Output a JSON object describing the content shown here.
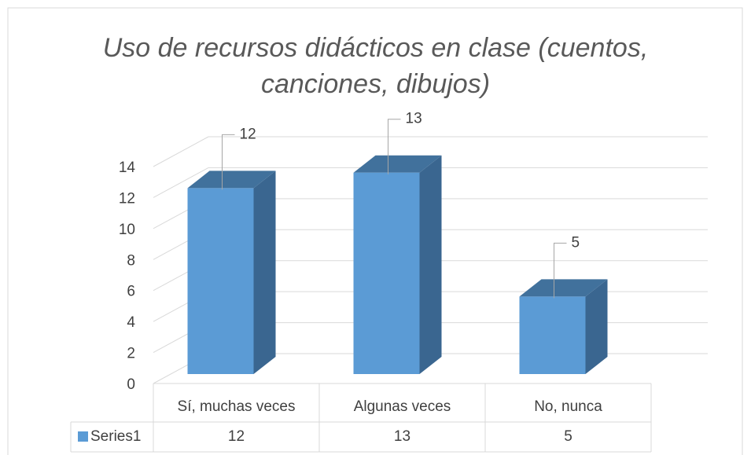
{
  "chart_data": {
    "type": "bar",
    "title": "Uso de recursos didácticos en clase (cuentos, canciones, dibujos)",
    "categories": [
      "Sí, muchas veces",
      "Algunas veces",
      "No, nunca"
    ],
    "series": [
      {
        "name": "Series1",
        "color": "#5b9bd5",
        "values": [
          12,
          13,
          5
        ]
      }
    ],
    "ylim": [
      0,
      14
    ],
    "yticks": [
      0,
      2,
      4,
      6,
      8,
      10,
      12,
      14
    ],
    "grid": true,
    "data_table": true
  }
}
